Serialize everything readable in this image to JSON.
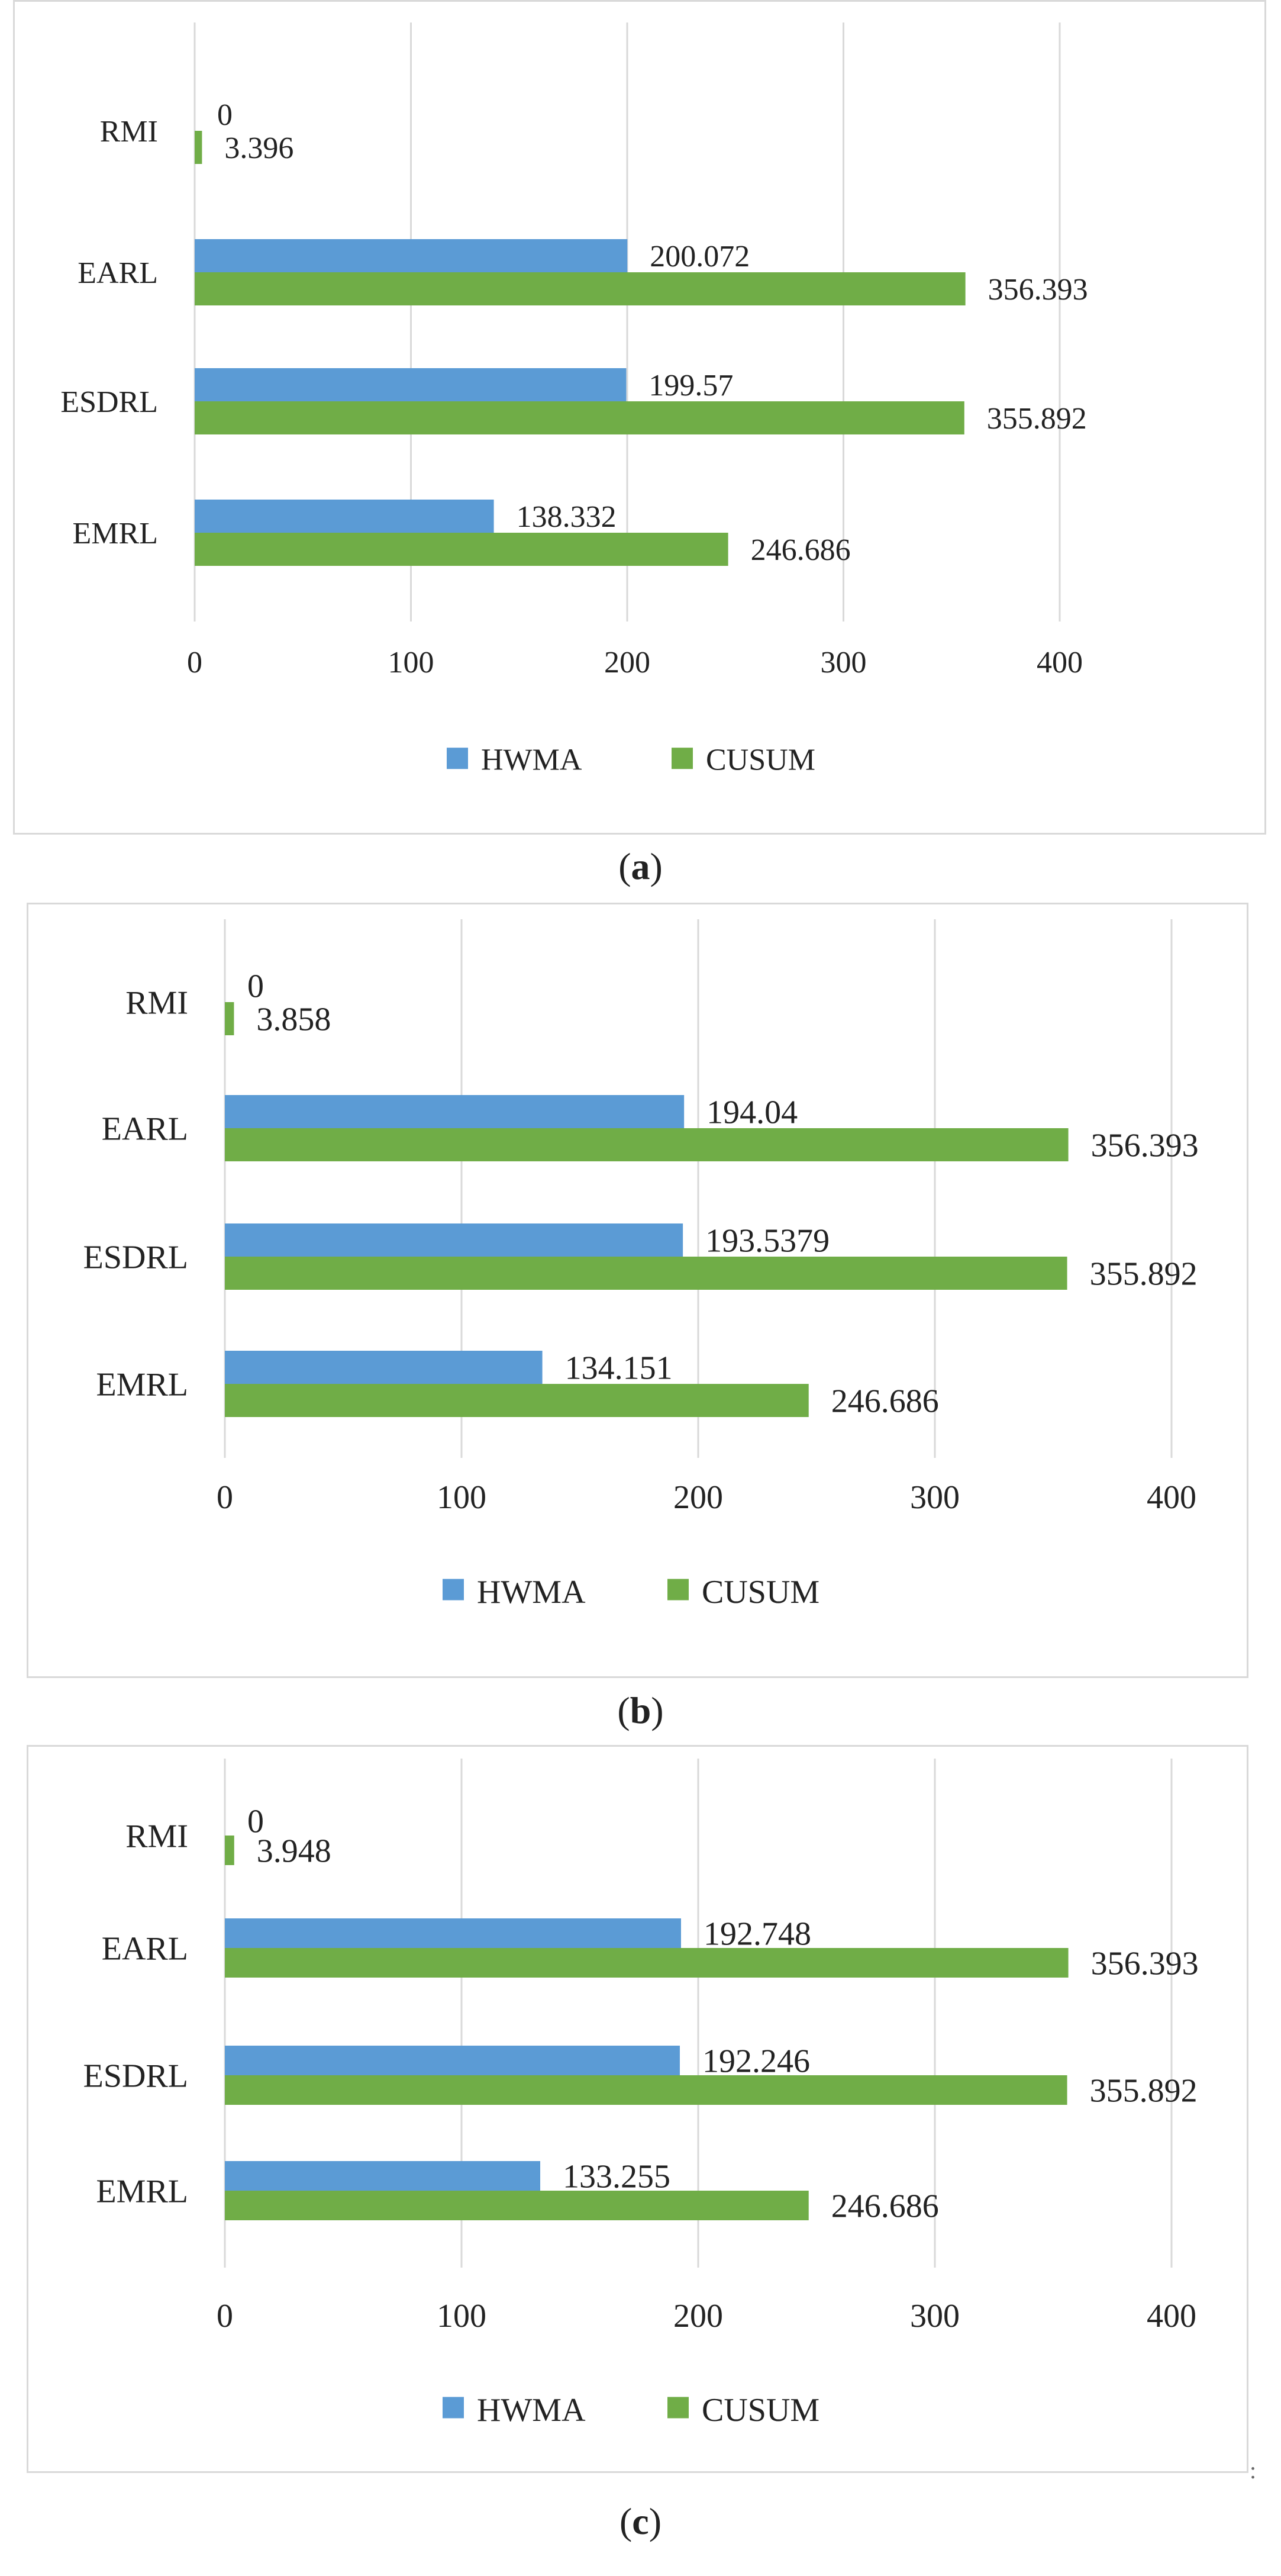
{
  "colors": {
    "hwma": "#5b9bd5",
    "cusum": "#70ad47",
    "grid": "#d9d9d9",
    "text": "#222222"
  },
  "chart_data": [
    {
      "type": "bar",
      "orientation": "horizontal",
      "categories": [
        "RMI",
        "EARL",
        "ESDRL",
        "EMRL"
      ],
      "series": [
        {
          "name": "HWMA",
          "values": [
            0,
            200.072,
            199.57,
            138.332
          ],
          "labels": [
            "0",
            "200.072",
            "199.57",
            "138.332"
          ]
        },
        {
          "name": "CUSUM",
          "values": [
            3.396,
            356.393,
            355.892,
            246.686
          ],
          "labels": [
            "3.396",
            "356.393",
            "355.892",
            "246.686"
          ]
        }
      ],
      "xlim": [
        0,
        400
      ],
      "ticks": [
        "0",
        "100",
        "200",
        "300",
        "400"
      ],
      "grid": true,
      "legend": "bottom",
      "caption_letter": "a"
    },
    {
      "type": "bar",
      "orientation": "horizontal",
      "categories": [
        "RMI",
        "EARL",
        "ESDRL",
        "EMRL"
      ],
      "series": [
        {
          "name": "HWMA",
          "values": [
            0,
            194.04,
            193.5379,
            134.151
          ],
          "labels": [
            "0",
            "194.04",
            "193.5379",
            "134.151"
          ]
        },
        {
          "name": "CUSUM",
          "values": [
            3.858,
            356.393,
            355.892,
            246.686
          ],
          "labels": [
            "3.858",
            "356.393",
            "355.892",
            "246.686"
          ]
        }
      ],
      "xlim": [
        0,
        400
      ],
      "ticks": [
        "0",
        "100",
        "200",
        "300",
        "400"
      ],
      "grid": true,
      "legend": "bottom",
      "caption_letter": "b"
    },
    {
      "type": "bar",
      "orientation": "horizontal",
      "categories": [
        "RMI",
        "EARL",
        "ESDRL",
        "EMRL"
      ],
      "series": [
        {
          "name": "HWMA",
          "values": [
            0,
            192.748,
            192.246,
            133.255
          ],
          "labels": [
            "0",
            "192.748",
            "192.246",
            "133.255"
          ]
        },
        {
          "name": "CUSUM",
          "values": [
            3.948,
            356.393,
            355.892,
            246.686
          ],
          "labels": [
            "3.948",
            "356.393",
            "355.892",
            "246.686"
          ]
        }
      ],
      "xlim": [
        0,
        400
      ],
      "ticks": [
        "0",
        "100",
        "200",
        "300",
        "400"
      ],
      "grid": true,
      "legend": "bottom",
      "caption_letter": "c"
    }
  ]
}
